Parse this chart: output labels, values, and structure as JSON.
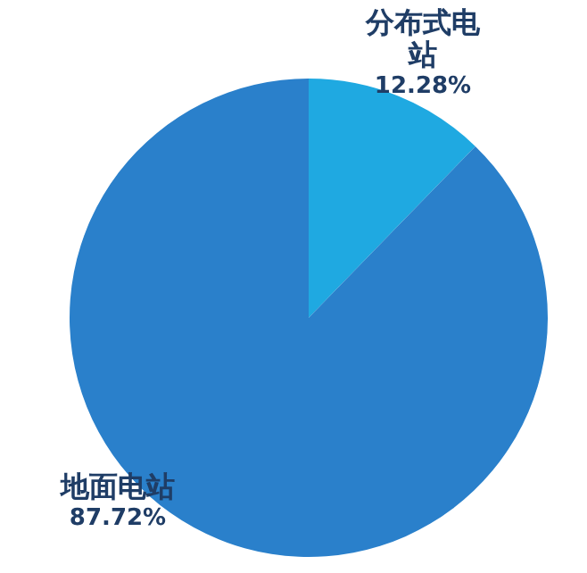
{
  "chart_data": {
    "type": "pie",
    "categories": [
      "分布式电站",
      "地面电站"
    ],
    "values": [
      12.28,
      87.72
    ],
    "colors": [
      "#1fa9e1",
      "#2a80cb"
    ],
    "value_labels": [
      "12.28%",
      "87.72%"
    ],
    "legend": false
  }
}
